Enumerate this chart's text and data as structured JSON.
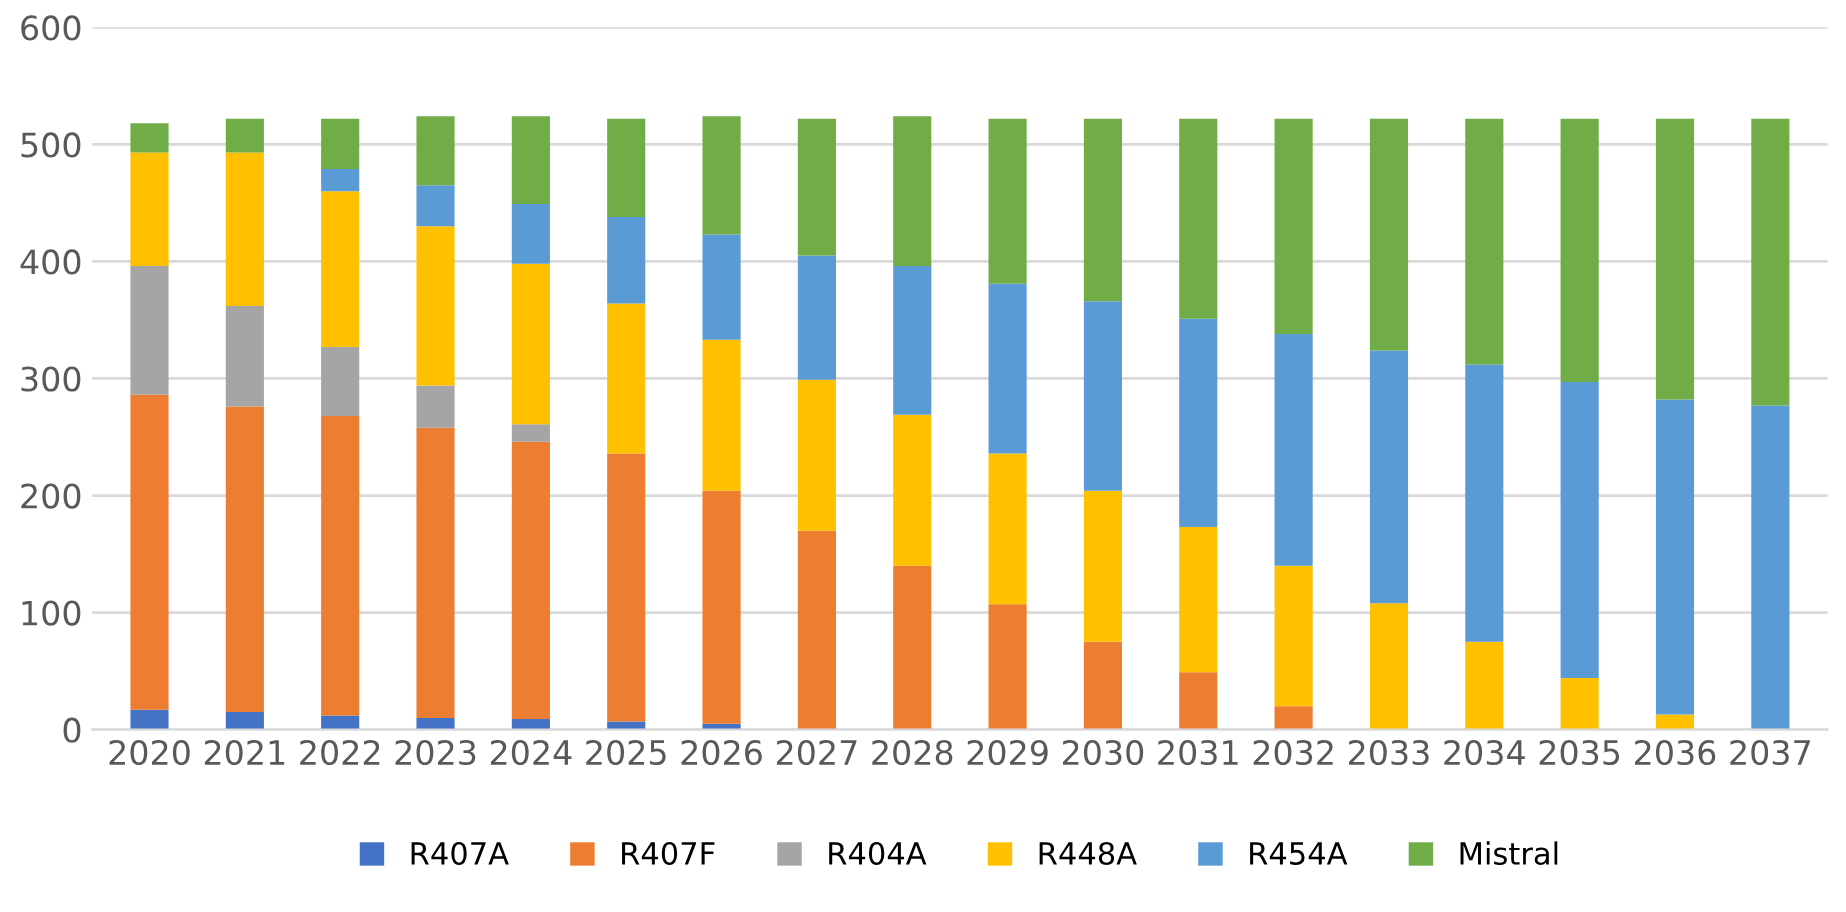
{
  "chart_data": {
    "type": "bar",
    "stacked": true,
    "categories": [
      "2020",
      "2021",
      "2022",
      "2023",
      "2024",
      "2025",
      "2026",
      "2027",
      "2028",
      "2029",
      "2030",
      "2031",
      "2032",
      "2033",
      "2034",
      "2035",
      "2036",
      "2037"
    ],
    "series": [
      {
        "name": "R407A",
        "color": "#4472c4",
        "values": [
          17,
          15,
          12,
          10,
          9,
          7,
          5,
          null,
          0,
          0,
          0,
          0,
          0,
          0,
          0,
          0,
          0,
          0
        ]
      },
      {
        "name": "R407F",
        "color": "#ed7d31",
        "values": [
          269,
          261,
          256,
          248,
          237,
          229,
          199,
          170,
          140,
          107,
          75,
          49,
          20,
          0,
          0,
          0,
          0,
          0
        ]
      },
      {
        "name": "R404A",
        "color": "#a5a5a5",
        "values": [
          110,
          86,
          59,
          36,
          15,
          0,
          0,
          0,
          0,
          0,
          0,
          0,
          0,
          0,
          0,
          0,
          0,
          0
        ]
      },
      {
        "name": "R448A",
        "color": "#ffc000",
        "values": [
          97,
          131,
          133,
          136,
          137,
          128,
          129,
          129,
          129,
          129,
          129,
          124,
          120,
          108,
          75,
          44,
          13,
          0
        ]
      },
      {
        "name": "R454A",
        "color": "#5b9bd5",
        "values": [
          0,
          0,
          19,
          35,
          51,
          74,
          90,
          106,
          127,
          145,
          162,
          178,
          198,
          216,
          237,
          253,
          269,
          277
        ]
      },
      {
        "name": "Mistral",
        "color": "#70ad47",
        "values": [
          25,
          29,
          43,
          59,
          75,
          84,
          101,
          117,
          128,
          141,
          156,
          171,
          184,
          198,
          210,
          225,
          240,
          245
        ]
      }
    ],
    "ylim": [
      0,
      600
    ],
    "yticks": [
      0,
      100,
      200,
      300,
      400,
      500,
      600
    ],
    "grid": "y",
    "legend": "bottom"
  }
}
